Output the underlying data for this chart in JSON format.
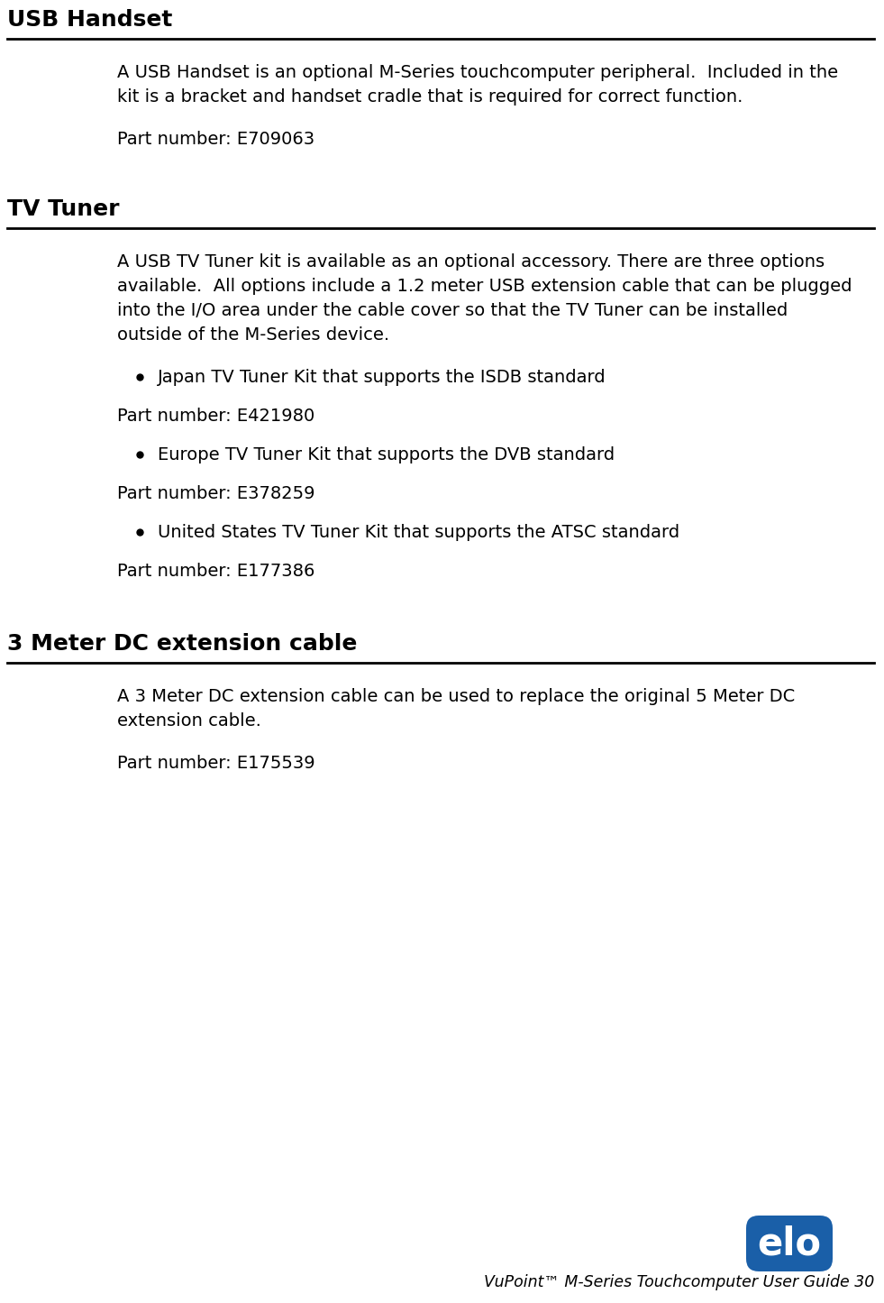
{
  "bg_color": "#ffffff",
  "text_color": "#000000",
  "section1_title": "USB Handset",
  "section1_body_line1": "A USB Handset is an optional M-Series touchcomputer peripheral.  Included in the",
  "section1_body_line2": "kit is a bracket and handset cradle that is required for correct function.",
  "section1_part": "Part number: E709063",
  "section2_title": "TV Tuner",
  "section2_body_line1": "A USB TV Tuner kit is available as an optional accessory. There are three options",
  "section2_body_line2": "available.  All options include a 1.2 meter USB extension cable that can be plugged",
  "section2_body_line3": "into the I/O area under the cable cover so that the TV Tuner can be installed",
  "section2_body_line4": "outside of the M-Series device.",
  "section2_bullet1": "Japan TV Tuner Kit that supports the ISDB standard",
  "section2_part1": "Part number: E421980",
  "section2_bullet2": "Europe TV Tuner Kit that supports the DVB standard",
  "section2_part2": "Part number: E378259",
  "section2_bullet3": "United States TV Tuner Kit that supports the ATSC standard",
  "section2_part3": "Part number: E177386",
  "section3_title": "3 Meter DC extension cable",
  "section3_body_line1": "A 3 Meter DC extension cable can be used to replace the original 5 Meter DC",
  "section3_body_line2": "extension cable.",
  "section3_part": "Part number: E175539",
  "footer_text": "VuPoint™ M-Series Touchcomputer User Guide 30",
  "elo_color": "#1a5fa8",
  "title_fontsize": 18,
  "body_fontsize": 14,
  "footer_fontsize": 12.5
}
